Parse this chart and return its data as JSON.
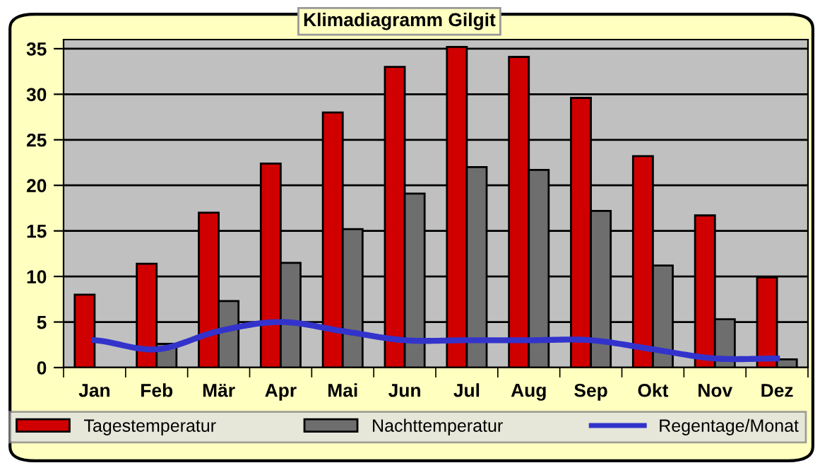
{
  "chart_data": {
    "type": "bar",
    "title": "Klimadiagramm Gilgit",
    "categories": [
      "Jan",
      "Feb",
      "Mär",
      "Apr",
      "Mai",
      "Jun",
      "Jul",
      "Aug",
      "Sep",
      "Okt",
      "Nov",
      "Dez"
    ],
    "series": [
      {
        "name": "Tagestemperatur",
        "color": "#d00000",
        "values": [
          8,
          11.4,
          17,
          22.4,
          28,
          33,
          35.2,
          34.1,
          29.6,
          23.2,
          16.7,
          9.9
        ]
      },
      {
        "name": "Nachttemperatur",
        "color": "#6e6e6e",
        "values": [
          null,
          2.6,
          7.3,
          11.5,
          15.2,
          19.1,
          22.0,
          21.7,
          17.2,
          11.2,
          5.3,
          0.9
        ]
      },
      {
        "name": "Regentage/Monat",
        "type": "line",
        "color": "#3333cc",
        "values": [
          3,
          2,
          4,
          5,
          4,
          3,
          3,
          3,
          3,
          2,
          1,
          1
        ]
      }
    ],
    "ylim": [
      0,
      36
    ],
    "yticks": [
      0,
      5,
      10,
      15,
      20,
      25,
      30,
      35
    ],
    "grid": "y",
    "legend": "bottom",
    "marker": "none",
    "line_style": "solid"
  }
}
